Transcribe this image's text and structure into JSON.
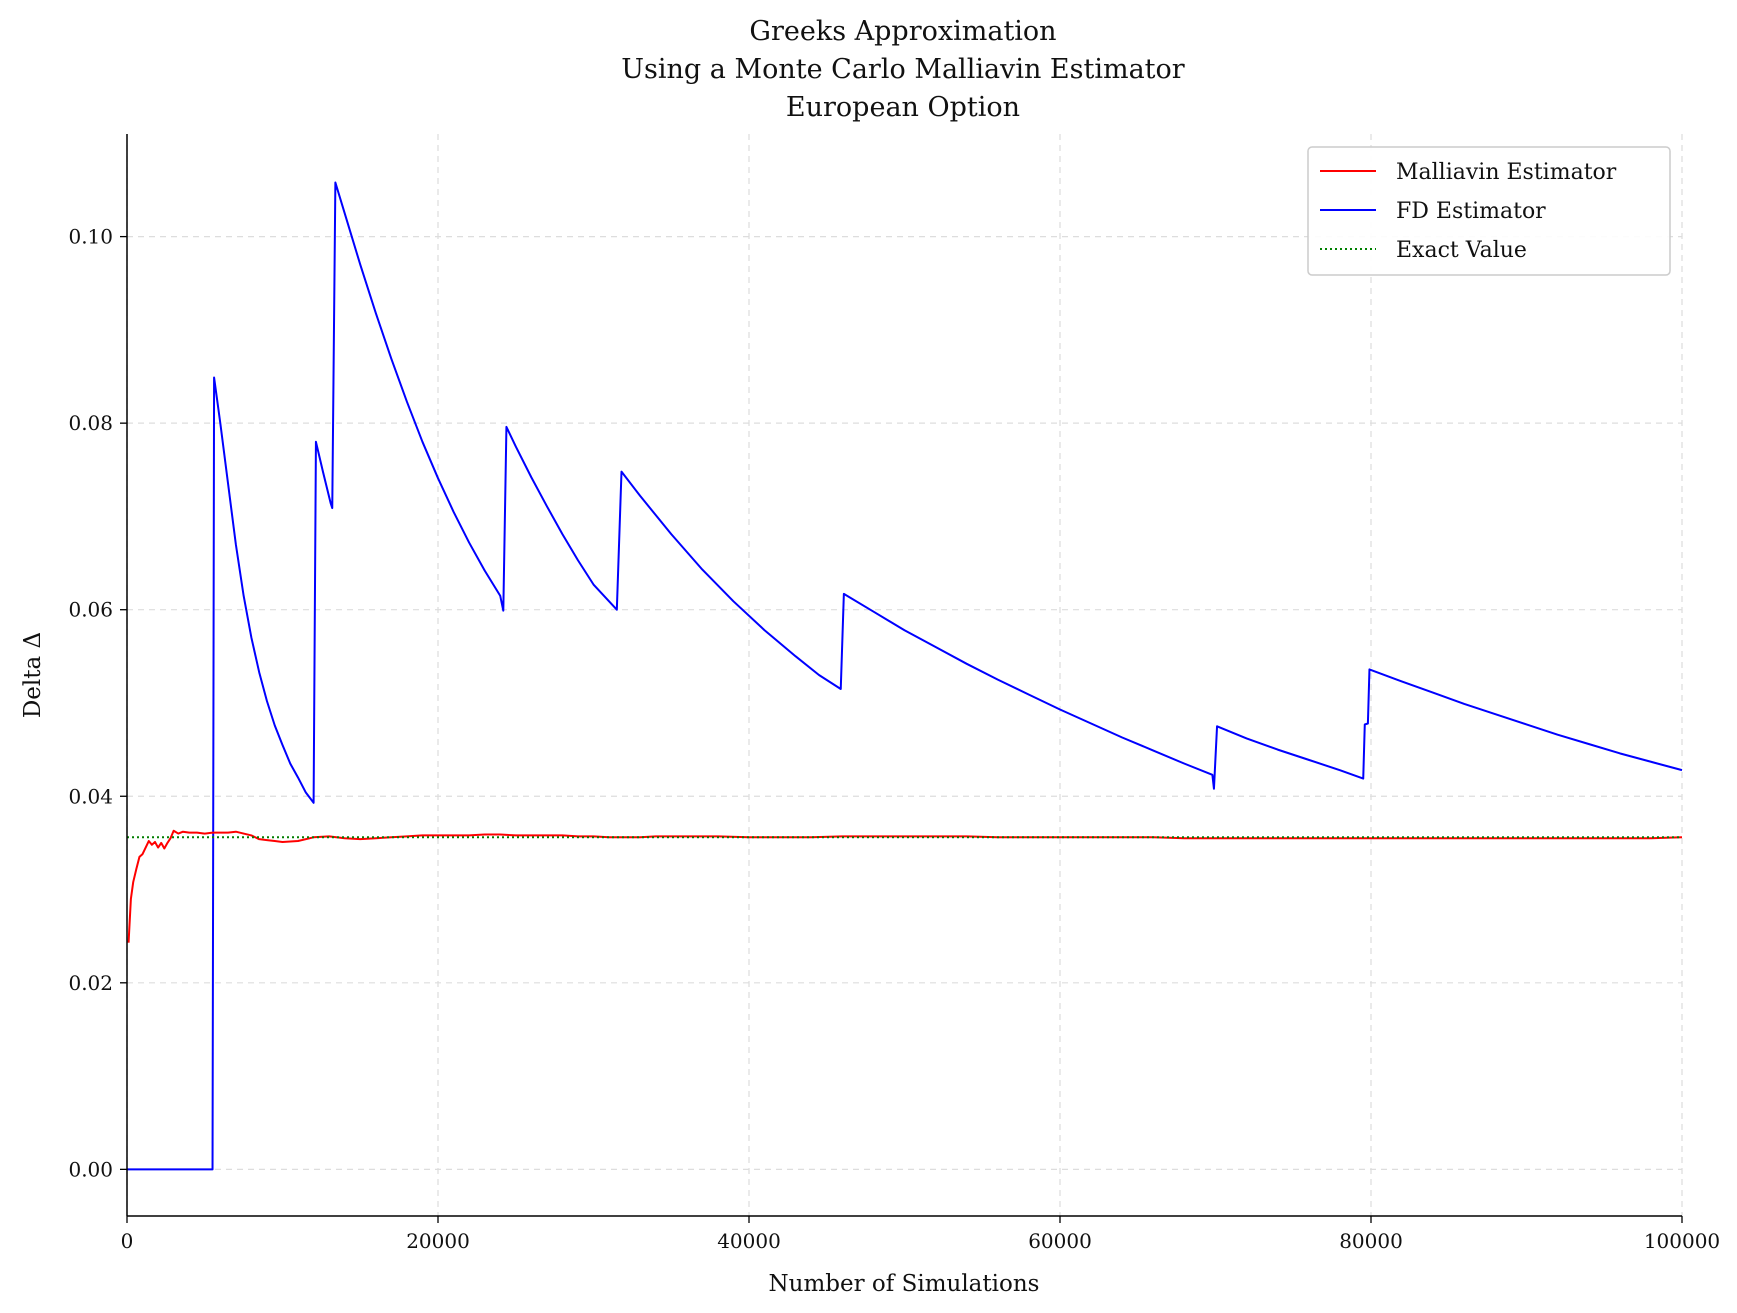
{
  "chart_data": {
    "type": "line",
    "title_lines": [
      "Greeks Approximation",
      "Using a Monte Carlo Malliavin Estimator",
      "European Option"
    ],
    "xlabel": "Number of Simulations",
    "ylabel": "Delta Δ",
    "xlim": [
      0,
      100000
    ],
    "ylim": [
      -0.005,
      0.111
    ],
    "x_ticks": [
      0,
      20000,
      40000,
      60000,
      80000,
      100000
    ],
    "x_tick_labels": [
      "0",
      "20000",
      "40000",
      "60000",
      "80000",
      "100000"
    ],
    "y_ticks": [
      0.0,
      0.02,
      0.04,
      0.06,
      0.08,
      0.1
    ],
    "y_tick_labels": [
      "0.00",
      "0.02",
      "0.04",
      "0.06",
      "0.08",
      "0.10"
    ],
    "grid": true,
    "legend_position": "top-right",
    "series": [
      {
        "name": "Malliavin Estimator",
        "color": "#ff0000",
        "style": "solid",
        "points": [
          [
            100,
            0.0243
          ],
          [
            250,
            0.029
          ],
          [
            400,
            0.0308
          ],
          [
            600,
            0.0322
          ],
          [
            800,
            0.0335
          ],
          [
            1000,
            0.0338
          ],
          [
            1200,
            0.0345
          ],
          [
            1400,
            0.0352
          ],
          [
            1600,
            0.0348
          ],
          [
            1800,
            0.0351
          ],
          [
            2000,
            0.0345
          ],
          [
            2200,
            0.035
          ],
          [
            2400,
            0.0344
          ],
          [
            2600,
            0.035
          ],
          [
            2800,
            0.0355
          ],
          [
            3000,
            0.0363
          ],
          [
            3300,
            0.036
          ],
          [
            3600,
            0.0362
          ],
          [
            4000,
            0.0361
          ],
          [
            4500,
            0.0361
          ],
          [
            5000,
            0.036
          ],
          [
            5500,
            0.0361
          ],
          [
            6000,
            0.0361
          ],
          [
            6500,
            0.0361
          ],
          [
            7000,
            0.0362
          ],
          [
            7500,
            0.036
          ],
          [
            8000,
            0.0358
          ],
          [
            8500,
            0.0354
          ],
          [
            9000,
            0.0353
          ],
          [
            9500,
            0.0352
          ],
          [
            10000,
            0.0351
          ],
          [
            11000,
            0.0352
          ],
          [
            12000,
            0.0356
          ],
          [
            13000,
            0.0357
          ],
          [
            14000,
            0.0355
          ],
          [
            15000,
            0.0354
          ],
          [
            16000,
            0.0355
          ],
          [
            17000,
            0.0356
          ],
          [
            18000,
            0.0357
          ],
          [
            19000,
            0.0358
          ],
          [
            20000,
            0.0358
          ],
          [
            21000,
            0.0358
          ],
          [
            22000,
            0.0358
          ],
          [
            23000,
            0.0359
          ],
          [
            24000,
            0.0359
          ],
          [
            25000,
            0.0358
          ],
          [
            26000,
            0.0358
          ],
          [
            27000,
            0.0358
          ],
          [
            28000,
            0.0358
          ],
          [
            29000,
            0.0357
          ],
          [
            30000,
            0.0357
          ],
          [
            31000,
            0.0356
          ],
          [
            32000,
            0.0356
          ],
          [
            33000,
            0.0356
          ],
          [
            34000,
            0.0357
          ],
          [
            36000,
            0.0357
          ],
          [
            38000,
            0.0357
          ],
          [
            40000,
            0.0356
          ],
          [
            42000,
            0.0356
          ],
          [
            44000,
            0.0356
          ],
          [
            46000,
            0.0357
          ],
          [
            48000,
            0.0357
          ],
          [
            50000,
            0.0357
          ],
          [
            52000,
            0.0357
          ],
          [
            54000,
            0.0357
          ],
          [
            56000,
            0.0356
          ],
          [
            58000,
            0.0356
          ],
          [
            60000,
            0.0356
          ],
          [
            62000,
            0.0356
          ],
          [
            64000,
            0.0356
          ],
          [
            66000,
            0.0356
          ],
          [
            68000,
            0.0355
          ],
          [
            70000,
            0.0355
          ],
          [
            72000,
            0.0355
          ],
          [
            74000,
            0.0355
          ],
          [
            76000,
            0.0355
          ],
          [
            78000,
            0.0355
          ],
          [
            80000,
            0.0355
          ],
          [
            82000,
            0.0355
          ],
          [
            84000,
            0.0355
          ],
          [
            86000,
            0.0355
          ],
          [
            88000,
            0.0355
          ],
          [
            90000,
            0.0355
          ],
          [
            92000,
            0.0355
          ],
          [
            94000,
            0.0355
          ],
          [
            96000,
            0.0355
          ],
          [
            98000,
            0.0355
          ],
          [
            100000,
            0.0356
          ]
        ]
      },
      {
        "name": "FD Estimator",
        "color": "#0000ff",
        "style": "solid",
        "points": [
          [
            0,
            0.0
          ],
          [
            5500,
            0.0
          ],
          [
            5600,
            0.0849
          ],
          [
            6000,
            0.08
          ],
          [
            6500,
            0.0735
          ],
          [
            7000,
            0.067
          ],
          [
            7500,
            0.0615
          ],
          [
            8000,
            0.057
          ],
          [
            8500,
            0.0533
          ],
          [
            9000,
            0.0502
          ],
          [
            9500,
            0.0476
          ],
          [
            10000,
            0.0455
          ],
          [
            10500,
            0.0435
          ],
          [
            11000,
            0.042
          ],
          [
            11500,
            0.0404
          ],
          [
            12000,
            0.0393
          ],
          [
            12150,
            0.078
          ],
          [
            12600,
            0.0748
          ],
          [
            13100,
            0.0714
          ],
          [
            13200,
            0.0709
          ],
          [
            13400,
            0.1058
          ],
          [
            14000,
            0.1025
          ],
          [
            15000,
            0.097
          ],
          [
            16000,
            0.0918
          ],
          [
            17000,
            0.0869
          ],
          [
            18000,
            0.0823
          ],
          [
            19000,
            0.078
          ],
          [
            20000,
            0.0741
          ],
          [
            21000,
            0.0705
          ],
          [
            22000,
            0.0672
          ],
          [
            23000,
            0.0642
          ],
          [
            24000,
            0.0615
          ],
          [
            24200,
            0.0599
          ],
          [
            24400,
            0.0796
          ],
          [
            25000,
            0.0775
          ],
          [
            26000,
            0.0742
          ],
          [
            27000,
            0.0711
          ],
          [
            28000,
            0.0681
          ],
          [
            29000,
            0.0653
          ],
          [
            30000,
            0.0627
          ],
          [
            31500,
            0.06
          ],
          [
            31800,
            0.0748
          ],
          [
            33000,
            0.0722
          ],
          [
            35000,
            0.0681
          ],
          [
            37000,
            0.0643
          ],
          [
            39000,
            0.0609
          ],
          [
            41000,
            0.0578
          ],
          [
            43000,
            0.055
          ],
          [
            44500,
            0.053
          ],
          [
            45900,
            0.0515
          ],
          [
            46100,
            0.0617
          ],
          [
            48000,
            0.0598
          ],
          [
            50000,
            0.0578
          ],
          [
            52000,
            0.056
          ],
          [
            54000,
            0.0542
          ],
          [
            56000,
            0.0525
          ],
          [
            58000,
            0.0509
          ],
          [
            60000,
            0.0493
          ],
          [
            62000,
            0.0478
          ],
          [
            64000,
            0.0463
          ],
          [
            66000,
            0.0449
          ],
          [
            68000,
            0.0435
          ],
          [
            69800,
            0.0423
          ],
          [
            69900,
            0.0408
          ],
          [
            70100,
            0.0475
          ],
          [
            72000,
            0.0462
          ],
          [
            74000,
            0.045
          ],
          [
            76000,
            0.0439
          ],
          [
            78000,
            0.0428
          ],
          [
            79500,
            0.0419
          ],
          [
            79600,
            0.0477
          ],
          [
            79800,
            0.0478
          ],
          [
            79900,
            0.0536
          ],
          [
            82000,
            0.0523
          ],
          [
            84000,
            0.0511
          ],
          [
            86000,
            0.0499
          ],
          [
            88000,
            0.0488
          ],
          [
            90000,
            0.0477
          ],
          [
            92000,
            0.0466
          ],
          [
            94000,
            0.0456
          ],
          [
            96000,
            0.0446
          ],
          [
            98000,
            0.0437
          ],
          [
            100000,
            0.0428
          ]
        ]
      },
      {
        "name": "Exact Value",
        "color": "#008000",
        "style": "dotted",
        "points": [
          [
            0,
            0.0356
          ],
          [
            100000,
            0.0356
          ]
        ]
      }
    ]
  }
}
